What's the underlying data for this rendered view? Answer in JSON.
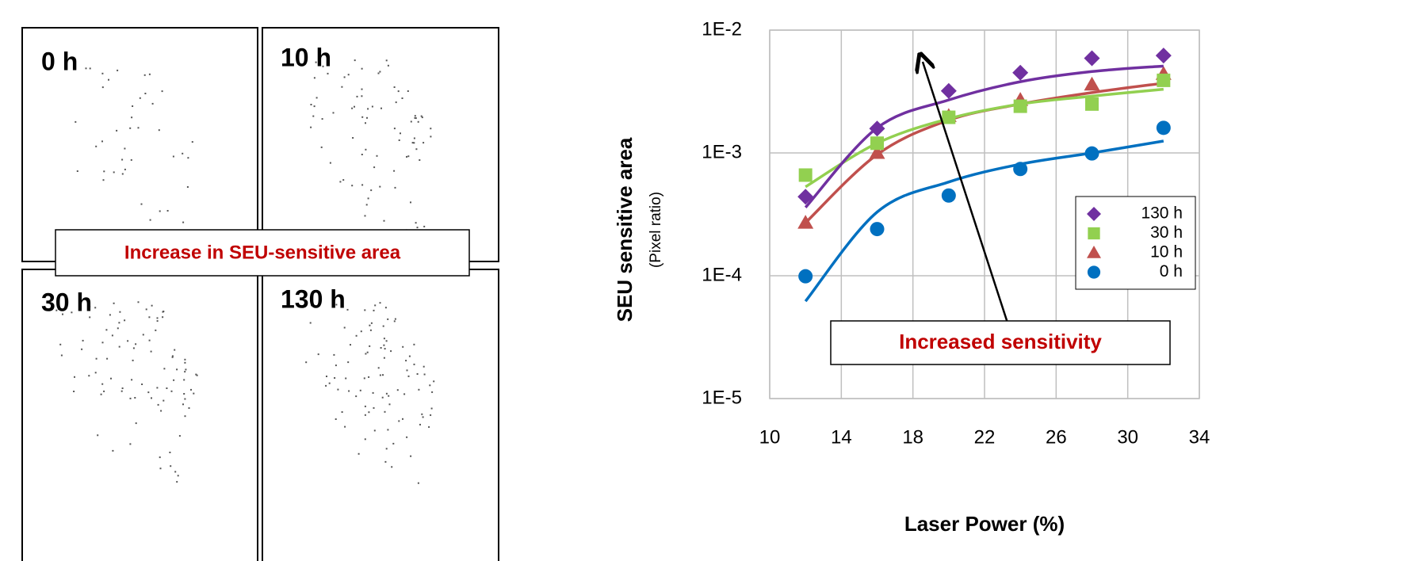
{
  "panels": {
    "labels": [
      "0 h",
      "10 h",
      "30 h",
      "130 h"
    ],
    "caption": "Increase in SEU-sensitive area"
  },
  "chart_data": {
    "type": "scatter",
    "x_label": "Laser Power (%)",
    "y_label": "SEU sensitive area",
    "y_sublabel": "(Pixel ratio)",
    "annotation": "Increased sensitivity",
    "x": [
      12,
      16,
      20,
      24,
      28,
      32
    ],
    "xlim": [
      10,
      34
    ],
    "xticks": [
      10,
      14,
      18,
      22,
      26,
      30,
      34
    ],
    "ylim": [
      1e-05,
      0.01
    ],
    "log_y": true,
    "yticks": [
      {
        "value": 1e-05,
        "label": "1E-5"
      },
      {
        "value": 0.0001,
        "label": "1E-4"
      },
      {
        "value": 0.001,
        "label": "1E-3"
      },
      {
        "value": 0.01,
        "label": "1E-2"
      }
    ],
    "grid": true,
    "legend": "right",
    "series": [
      {
        "name": "130 h",
        "color": "#7030a0",
        "marker": "diamond",
        "values": [
          0.00044,
          0.00158,
          0.0032,
          0.0045,
          0.0059,
          0.0062
        ],
        "fit": [
          0.00036,
          0.0016,
          0.0027,
          0.0038,
          0.0046,
          0.0051
        ]
      },
      {
        "name": "30 h",
        "color": "#92d050",
        "marker": "square",
        "values": [
          0.00066,
          0.0012,
          0.00195,
          0.0024,
          0.0025,
          0.0039
        ],
        "fit": [
          0.00053,
          0.0012,
          0.0019,
          0.0025,
          0.0029,
          0.0033
        ]
      },
      {
        "name": "10 h",
        "color": "#c0504d",
        "marker": "triangle",
        "values": [
          0.00027,
          0.001,
          0.002,
          0.0027,
          0.0036,
          0.0044
        ],
        "fit": [
          0.00027,
          0.00097,
          0.00185,
          0.0025,
          0.0031,
          0.0037
        ]
      },
      {
        "name": "0 h",
        "color": "#0070c0",
        "marker": "circle",
        "values": [
          9.9e-05,
          0.00024,
          0.00045,
          0.00074,
          0.00099,
          0.0016
        ],
        "fit": [
          6.2e-05,
          0.00033,
          0.00058,
          0.00081,
          0.001,
          0.00125
        ]
      }
    ]
  }
}
